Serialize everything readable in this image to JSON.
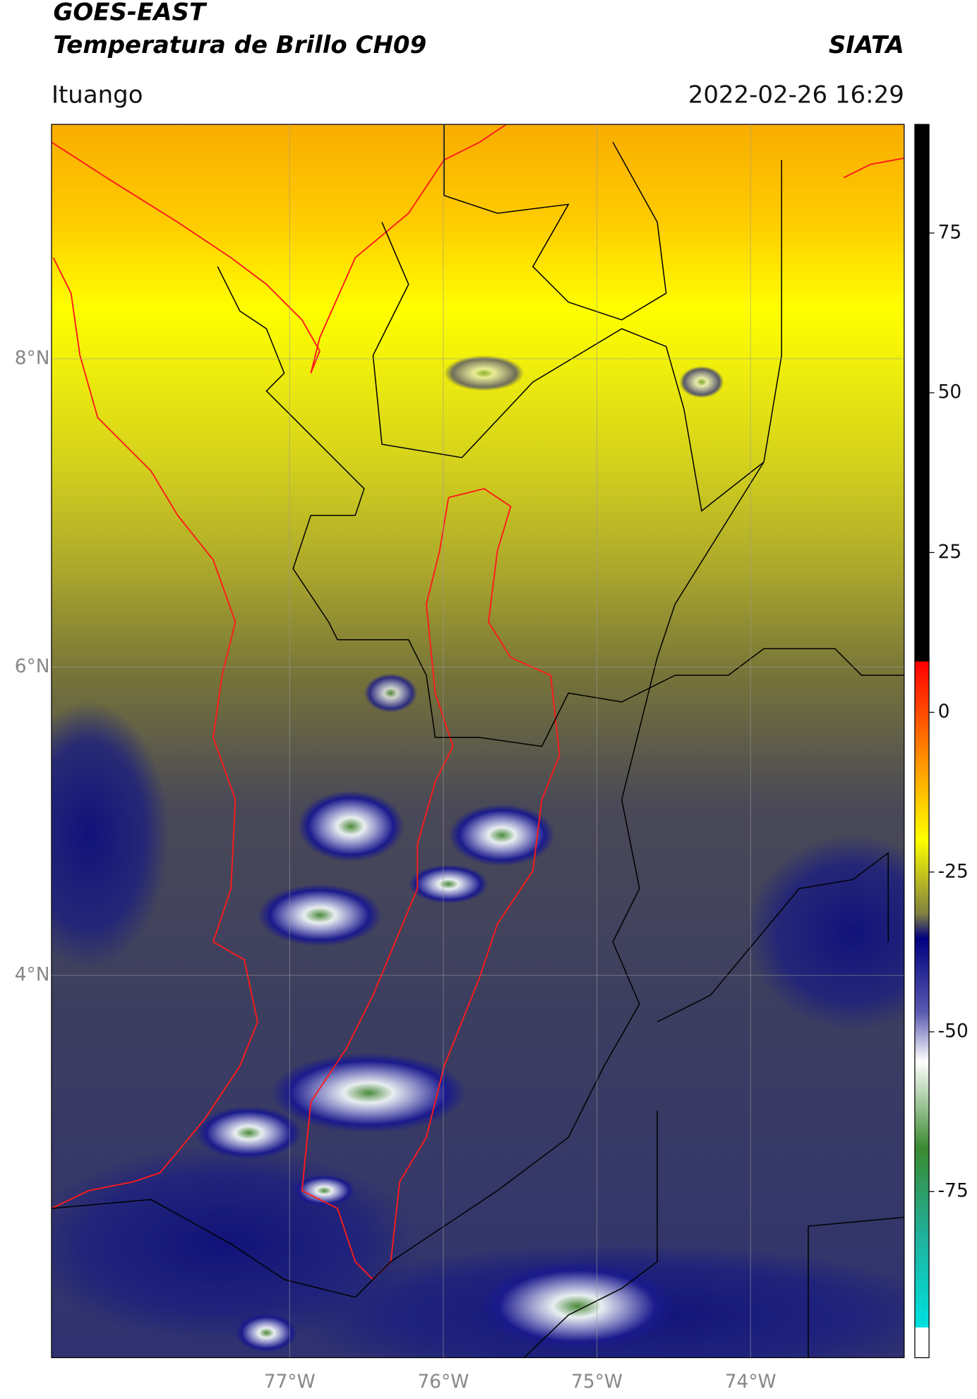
{
  "header": {
    "title": "GOES-EAST",
    "subtitle": "Temperatura de Brillo CH09",
    "source": "SIATA",
    "location": "Ituango",
    "timestamp": "2022-02-26 16:29"
  },
  "map": {
    "type": "map",
    "xlim": [
      -78.55,
      -73.0
    ],
    "ylim": [
      1.52,
      9.52
    ],
    "xticks": [
      {
        "value": -77,
        "label": "77°W"
      },
      {
        "value": -76,
        "label": "76°W"
      },
      {
        "value": -75,
        "label": "75°W"
      },
      {
        "value": -74,
        "label": "74°W"
      }
    ],
    "yticks": [
      {
        "value": 8,
        "label": "8°N"
      },
      {
        "value": 6,
        "label": "6°N"
      },
      {
        "value": 4,
        "label": "4°N"
      }
    ],
    "grid": true
  },
  "colorbar": {
    "lim": [
      -101,
      92
    ],
    "ticks": [
      75,
      50,
      25,
      0,
      -25,
      -50,
      -75
    ]
  }
}
